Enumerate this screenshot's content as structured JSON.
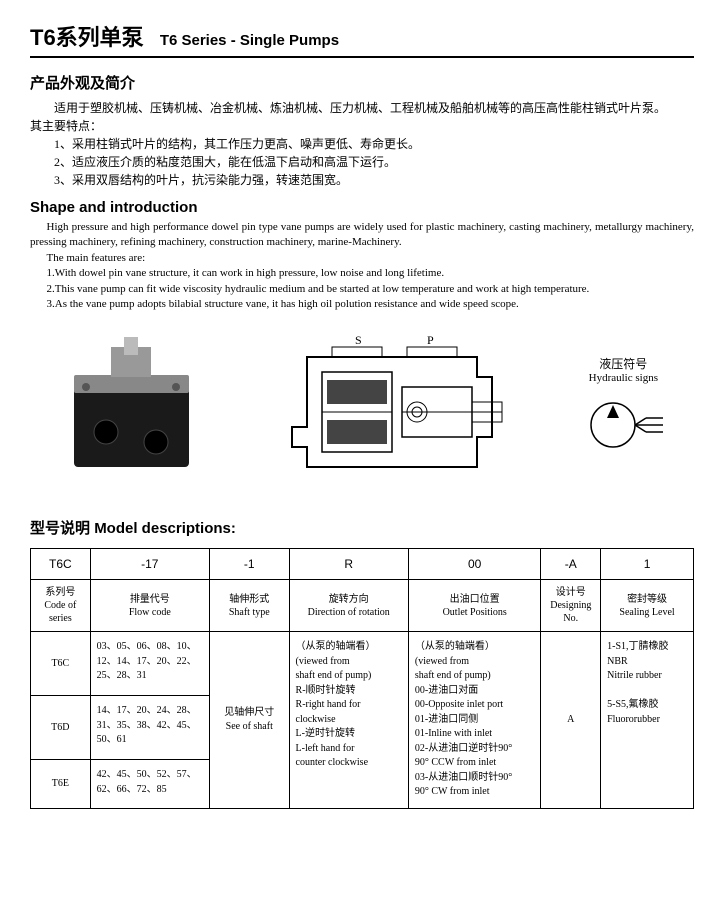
{
  "header": {
    "title_cn": "T6系列单泵",
    "title_en": "T6 Series - Single Pumps"
  },
  "section_cn": {
    "heading": "产品外观及简介",
    "intro": "适用于塑胶机械、压铸机械、冶金机械、炼油机械、压力机械、工程机械及船舶机械等的高压高性能柱销式叶片泵。",
    "features_label": "其主要特点：",
    "features": [
      "1、采用柱销式叶片的结构，其工作压力更高、噪声更低、寿命更长。",
      "2、适应液压介质的粘度范围大，能在低温下启动和高温下运行。",
      "3、采用双唇结构的叶片，抗污染能力强，转速范围宽。"
    ]
  },
  "section_en": {
    "heading": "Shape and introduction",
    "intro": "High pressure and high performance dowel pin type vane pumps are widely used for plastic machinery, casting machinery, metallurgy machinery, pressing machinery, refining machinery, construction machinery, marine-Machinery.",
    "features_label": "The main features are:",
    "features": [
      "1.With dowel pin vane structure, it can work in high pressure, low noise and long lifetime.",
      "2.This vane pump can fit wide viscosity hydraulic medium and be started at low temperature and work at high temperature.",
      "3.As the vane pump adopts bilabial structure vane, it has high oil polution resistance and wide speed scope."
    ]
  },
  "diagrams": {
    "hydraulic_cn": "液压符号",
    "hydraulic_en": "Hydraulic signs",
    "port_s": "S",
    "port_p": "P"
  },
  "model_section": {
    "title_cn": "型号说明",
    "title_en": "Model descriptions:"
  },
  "table": {
    "example_row": [
      "T6C",
      "-17",
      "-1",
      "R",
      "00",
      "-A",
      "1"
    ],
    "header_row": [
      {
        "cn": "系列号",
        "en": "Code of series"
      },
      {
        "cn": "排量代号",
        "en": "Flow code"
      },
      {
        "cn": "轴伸形式",
        "en": "Shaft type"
      },
      {
        "cn": "旋转方向",
        "en": "Direction of rotation"
      },
      {
        "cn": "出油口位置",
        "en": "Outlet Positions"
      },
      {
        "cn": "设计号",
        "en": "Designing No."
      },
      {
        "cn": "密封等级",
        "en": "Sealing Level"
      }
    ],
    "series": [
      {
        "name": "T6C",
        "flow": "03、05、06、08、10、12、14、17、20、22、25、28、31"
      },
      {
        "name": "T6D",
        "flow": "14、17、20、24、28、31、35、38、42、45、50、61"
      },
      {
        "name": "T6E",
        "flow": "42、45、50、52、57、62、66、72、85"
      }
    ],
    "shaft_text_cn": "见轴伸尺寸",
    "shaft_text_en": "See of shaft",
    "rotation_lines": [
      "（从泵的轴端看）",
      "(viewed from",
      "shaft end of pump)",
      "R-顺时针旋转",
      "R-right hand for",
      "clockwise",
      "L-逆时针旋转",
      "L-left hand for",
      "counter clockwise"
    ],
    "outlet_lines": [
      "（从泵的轴端看）",
      "(viewed from",
      "shaft end of pump)",
      "00-进油口对面",
      "00-Opposite inlet port",
      "01-进油口同侧",
      "01-Inline with inlet",
      "02-从进油口逆时针90°",
      "90° CCW from inlet",
      "03-从进油口顺时针90°",
      "90° CW from inlet"
    ],
    "design_value": "A",
    "seal_lines": [
      "1-S1,丁腈橡胶",
      "NBR",
      "Nitrile rubber",
      "",
      "5-S5,氟橡胶",
      "Fluororubber"
    ]
  }
}
